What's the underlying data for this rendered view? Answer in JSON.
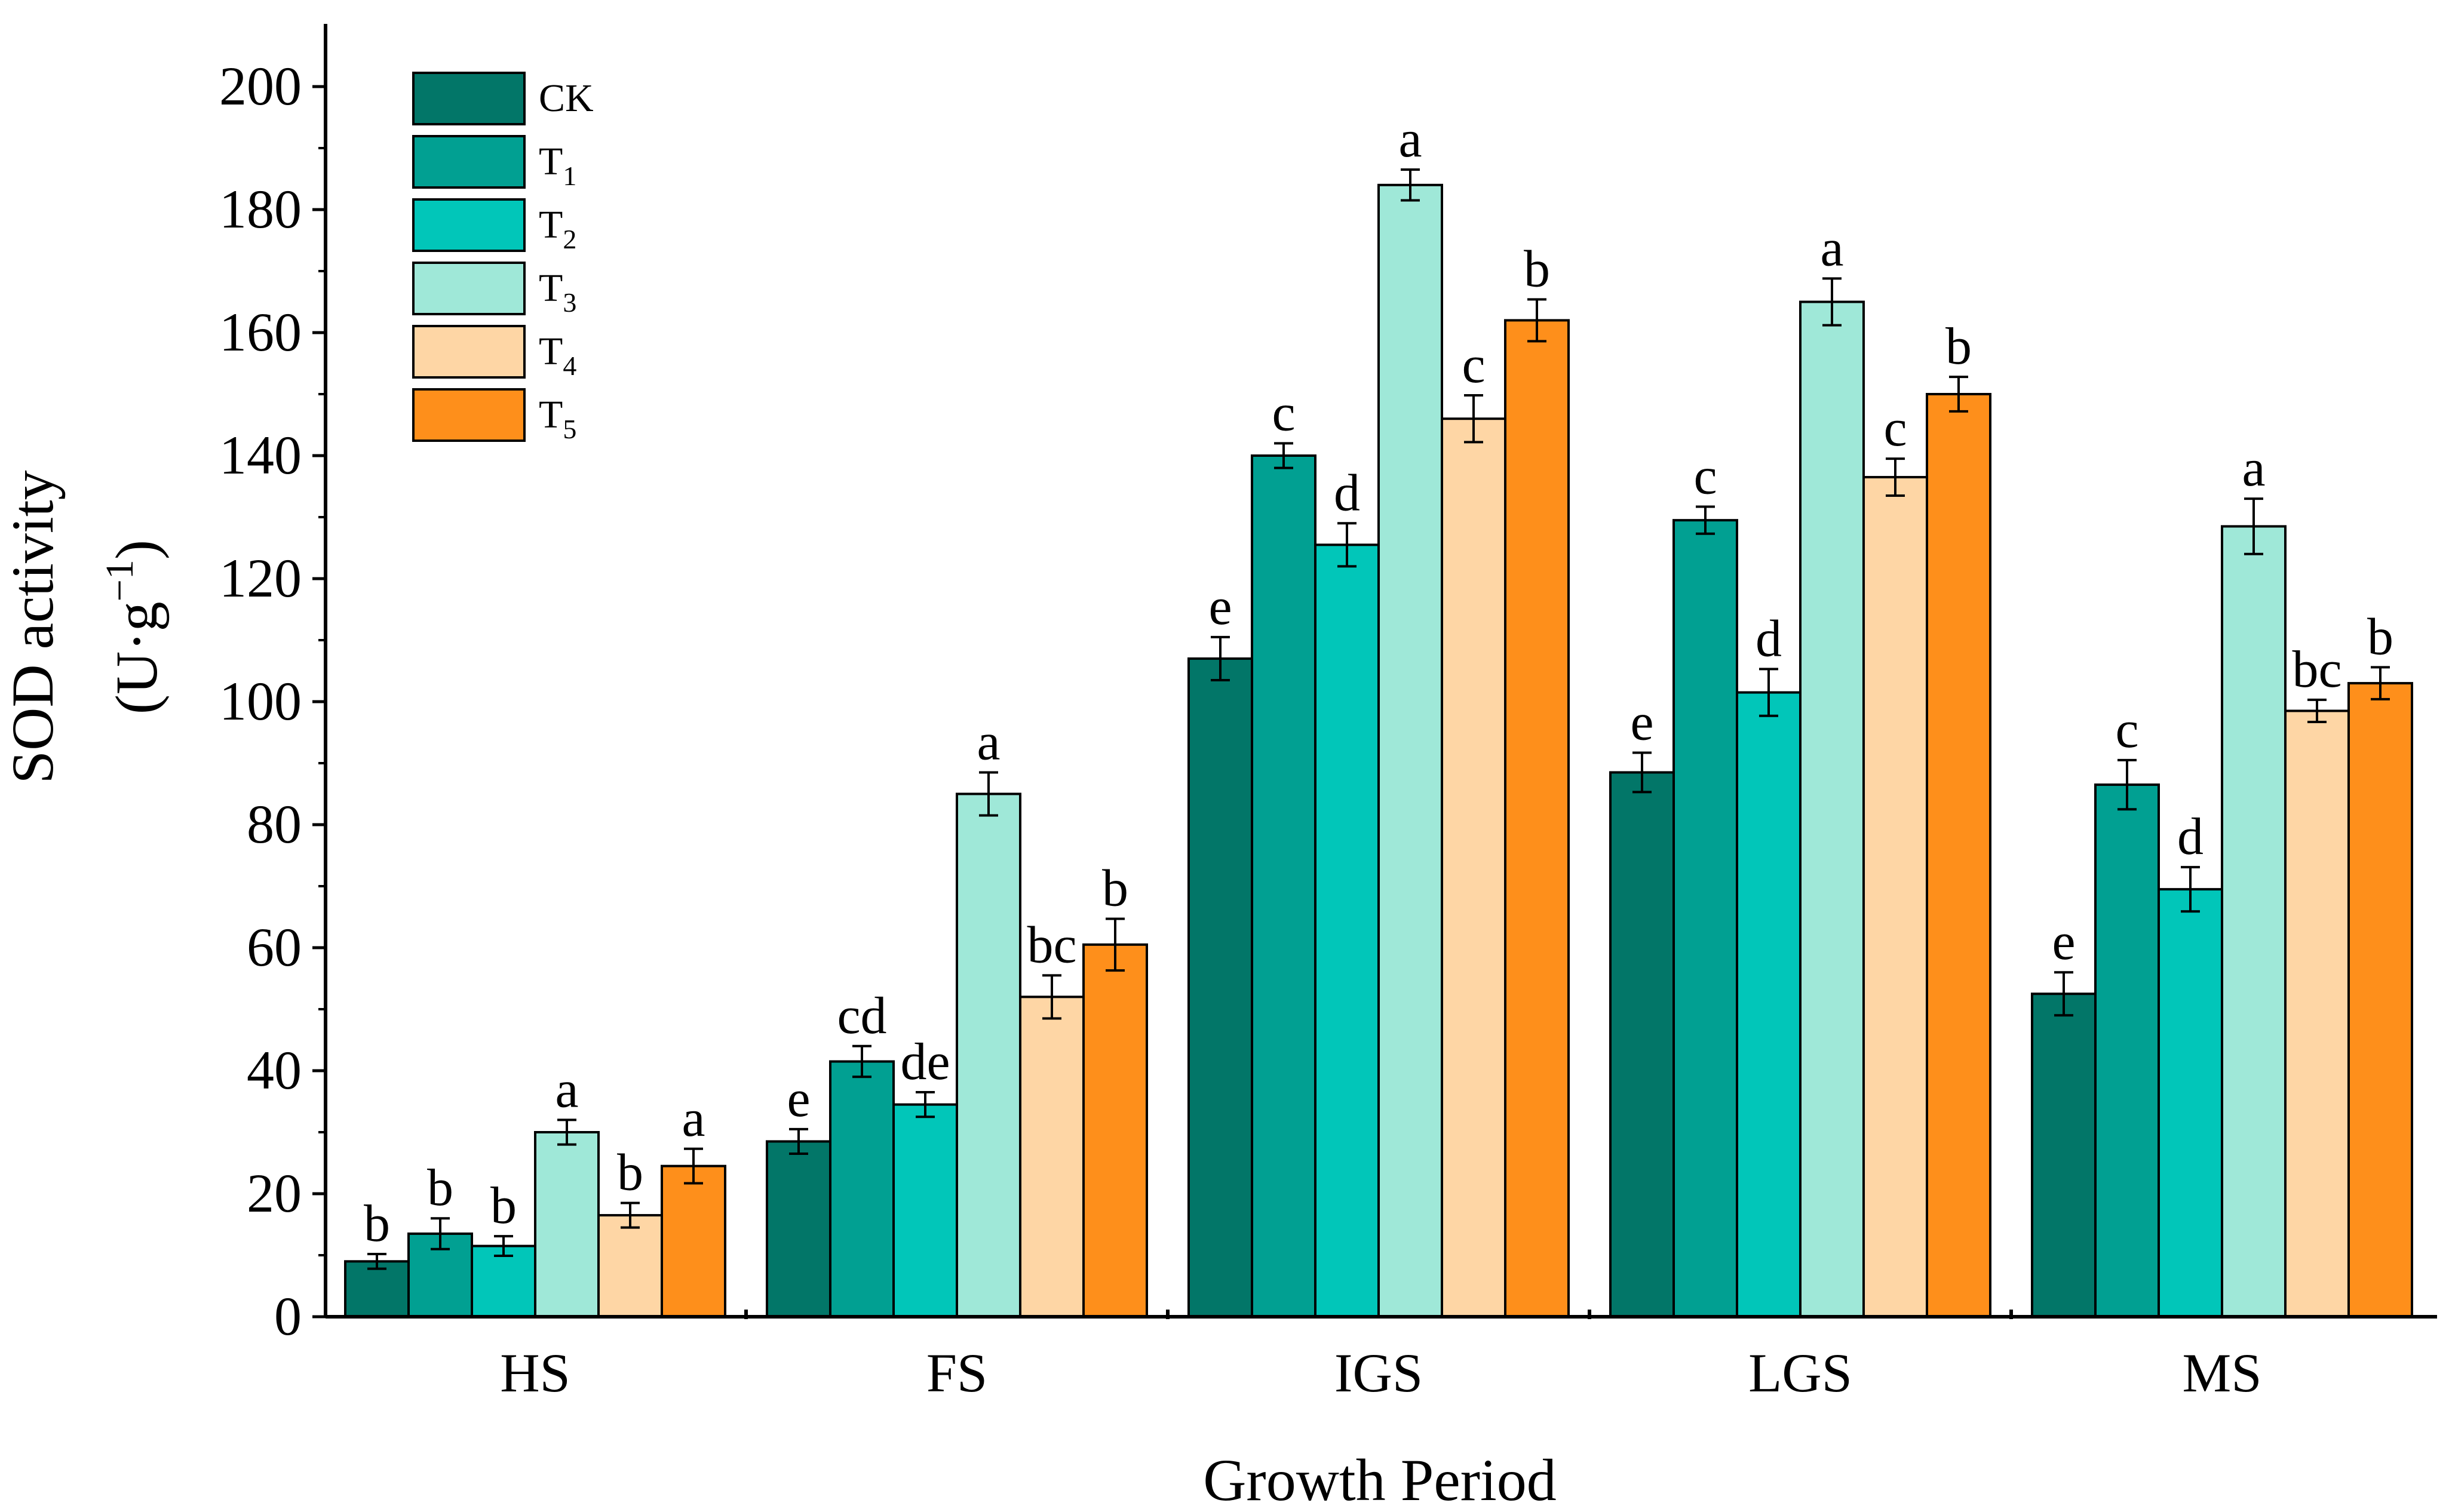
{
  "chart_data": {
    "type": "bar",
    "title": "",
    "xlabel": "Growth Period",
    "ylabel_line1": "SOD activity",
    "ylabel_line2_base": "(U·g",
    "ylabel_line2_sup": "−1",
    "ylabel_line2_end": ")",
    "ylim": [
      0,
      210
    ],
    "yticks": [
      0,
      20,
      40,
      60,
      80,
      100,
      120,
      140,
      160,
      180,
      200
    ],
    "grid": false,
    "legend_position": "top-left",
    "categories": [
      "HS",
      "FS",
      "IGS",
      "LGS",
      "MS"
    ],
    "series": [
      {
        "name": "CK",
        "base": "CK",
        "sub": "",
        "color": "#027668",
        "values": [
          9,
          28.5,
          107,
          88.5,
          52.5
        ],
        "errors": [
          1.2,
          2,
          3.5,
          3.2,
          3.5
        ],
        "letters": [
          "b",
          "e",
          "e",
          "e",
          "e"
        ]
      },
      {
        "name": "T1",
        "base": "T",
        "sub": "1",
        "color": "#01a092",
        "values": [
          13.5,
          41.5,
          140,
          129.5,
          86.5
        ],
        "errors": [
          2.5,
          2.5,
          2,
          2.2,
          4
        ],
        "letters": [
          "b",
          "cd",
          "c",
          "c",
          "c"
        ]
      },
      {
        "name": "T2",
        "base": "T",
        "sub": "2",
        "color": "#01c6b9",
        "values": [
          11.5,
          34.5,
          125.5,
          101.5,
          69.5
        ],
        "errors": [
          1.6,
          2,
          3.5,
          3.8,
          3.6
        ],
        "letters": [
          "b",
          "de",
          "d",
          "d",
          "d"
        ]
      },
      {
        "name": "T3",
        "base": "T",
        "sub": "3",
        "color": "#9fe8d8",
        "values": [
          30,
          85,
          184,
          165,
          128.5
        ],
        "errors": [
          2,
          3.5,
          2.5,
          3.8,
          4.5
        ],
        "letters": [
          "a",
          "a",
          "a",
          "a",
          "a"
        ]
      },
      {
        "name": "T4",
        "base": "T",
        "sub": "4",
        "color": "#fed6a5",
        "values": [
          16.5,
          52,
          146,
          136.5,
          98.5
        ],
        "errors": [
          2,
          3.5,
          3.8,
          3,
          1.8
        ],
        "letters": [
          "b",
          "bc",
          "c",
          "c",
          "bc"
        ]
      },
      {
        "name": "T5",
        "base": "T",
        "sub": "5",
        "color": "#fe8f1b",
        "values": [
          24.5,
          60.5,
          162,
          150,
          103
        ],
        "errors": [
          2.8,
          4.2,
          3.4,
          2.8,
          2.6
        ],
        "letters": [
          "a",
          "b",
          "b",
          "b",
          "b"
        ]
      }
    ]
  }
}
